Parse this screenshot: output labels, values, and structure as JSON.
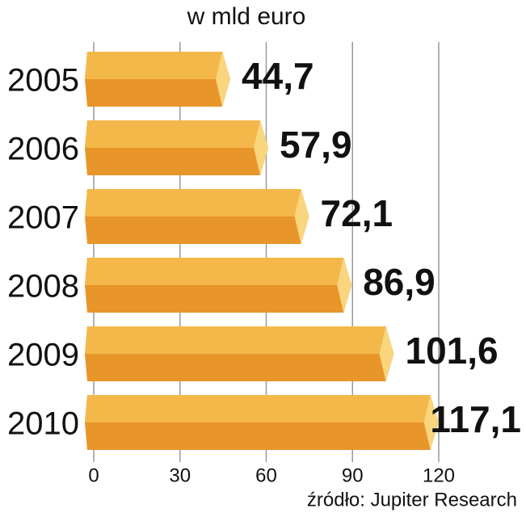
{
  "chart_data": {
    "type": "bar",
    "orientation": "horizontal",
    "subtitle": "w mld euro",
    "categories": [
      "2005",
      "2006",
      "2007",
      "2008",
      "2009",
      "2010"
    ],
    "values": [
      44.7,
      57.9,
      72.1,
      86.9,
      101.6,
      117.1
    ],
    "value_labels": [
      "44,7",
      "57,9",
      "72,1",
      "86,9",
      "101,6",
      "117,1"
    ],
    "color": "#e8952a",
    "xlim": [
      0,
      120
    ],
    "xticks": [
      0,
      30,
      60,
      90,
      120
    ],
    "grid": true,
    "source": "źródło: Jupiter Research"
  }
}
